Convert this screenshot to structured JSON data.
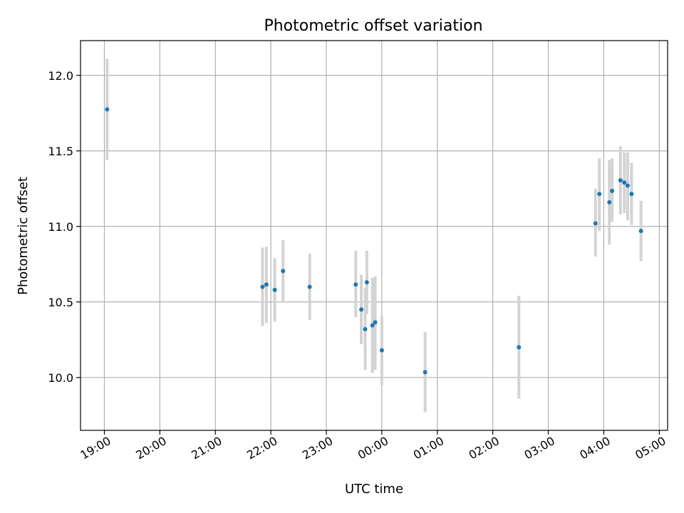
{
  "chart_data": {
    "type": "scatter",
    "title": "Photometric offset variation",
    "xlabel": "UTC time",
    "ylabel": "Photometric offset",
    "x_unit": "UTC time (hours past 19:00 on the displayed night)",
    "xlim": [
      -0.43,
      10.15
    ],
    "ylim": [
      9.65,
      12.23
    ],
    "xticks": [
      {
        "v": 0,
        "label": "19:00"
      },
      {
        "v": 1,
        "label": "20:00"
      },
      {
        "v": 2,
        "label": "21:00"
      },
      {
        "v": 3,
        "label": "22:00"
      },
      {
        "v": 4,
        "label": "23:00"
      },
      {
        "v": 5,
        "label": "00:00"
      },
      {
        "v": 6,
        "label": "01:00"
      },
      {
        "v": 7,
        "label": "02:00"
      },
      {
        "v": 8,
        "label": "03:00"
      },
      {
        "v": 9,
        "label": "04:00"
      },
      {
        "v": 10,
        "label": "05:00"
      }
    ],
    "yticks": [
      {
        "v": 10.0,
        "label": "10.0"
      },
      {
        "v": 10.5,
        "label": "10.5"
      },
      {
        "v": 11.0,
        "label": "11.0"
      },
      {
        "v": 11.5,
        "label": "11.5"
      },
      {
        "v": 12.0,
        "label": "12.0"
      }
    ],
    "grid": true,
    "marker_color": "#1f77b4",
    "errorbar_color": "#d3d3d3",
    "points": [
      {
        "x": 0.05,
        "y": 11.775,
        "lo": 11.44,
        "hi": 12.11
      },
      {
        "x": 2.85,
        "y": 10.6,
        "lo": 10.34,
        "hi": 10.86
      },
      {
        "x": 2.92,
        "y": 10.615,
        "lo": 10.36,
        "hi": 10.865
      },
      {
        "x": 3.07,
        "y": 10.58,
        "lo": 10.37,
        "hi": 10.79
      },
      {
        "x": 3.22,
        "y": 10.705,
        "lo": 10.5,
        "hi": 10.91
      },
      {
        "x": 3.7,
        "y": 10.6,
        "lo": 10.38,
        "hi": 10.82
      },
      {
        "x": 4.53,
        "y": 10.615,
        "lo": 10.4,
        "hi": 10.84
      },
      {
        "x": 4.63,
        "y": 10.45,
        "lo": 10.22,
        "hi": 10.68
      },
      {
        "x": 4.7,
        "y": 10.32,
        "lo": 10.05,
        "hi": 10.59
      },
      {
        "x": 4.73,
        "y": 10.63,
        "lo": 10.42,
        "hi": 10.84
      },
      {
        "x": 4.83,
        "y": 10.345,
        "lo": 10.03,
        "hi": 10.66
      },
      {
        "x": 4.88,
        "y": 10.365,
        "lo": 10.05,
        "hi": 10.67
      },
      {
        "x": 5.0,
        "y": 10.18,
        "lo": 9.95,
        "hi": 10.41
      },
      {
        "x": 5.78,
        "y": 10.035,
        "lo": 9.77,
        "hi": 10.3
      },
      {
        "x": 7.47,
        "y": 10.2,
        "lo": 9.86,
        "hi": 10.54
      },
      {
        "x": 8.85,
        "y": 11.02,
        "lo": 10.8,
        "hi": 11.25
      },
      {
        "x": 8.92,
        "y": 11.215,
        "lo": 10.97,
        "hi": 11.45
      },
      {
        "x": 9.1,
        "y": 11.16,
        "lo": 10.88,
        "hi": 11.44
      },
      {
        "x": 9.15,
        "y": 11.235,
        "lo": 11.03,
        "hi": 11.45
      },
      {
        "x": 9.3,
        "y": 11.305,
        "lo": 11.08,
        "hi": 11.53
      },
      {
        "x": 9.37,
        "y": 11.29,
        "lo": 11.09,
        "hi": 11.49
      },
      {
        "x": 9.43,
        "y": 11.27,
        "lo": 11.04,
        "hi": 11.49
      },
      {
        "x": 9.5,
        "y": 11.215,
        "lo": 11.01,
        "hi": 11.42
      },
      {
        "x": 9.67,
        "y": 10.97,
        "lo": 10.77,
        "hi": 11.17
      }
    ]
  }
}
